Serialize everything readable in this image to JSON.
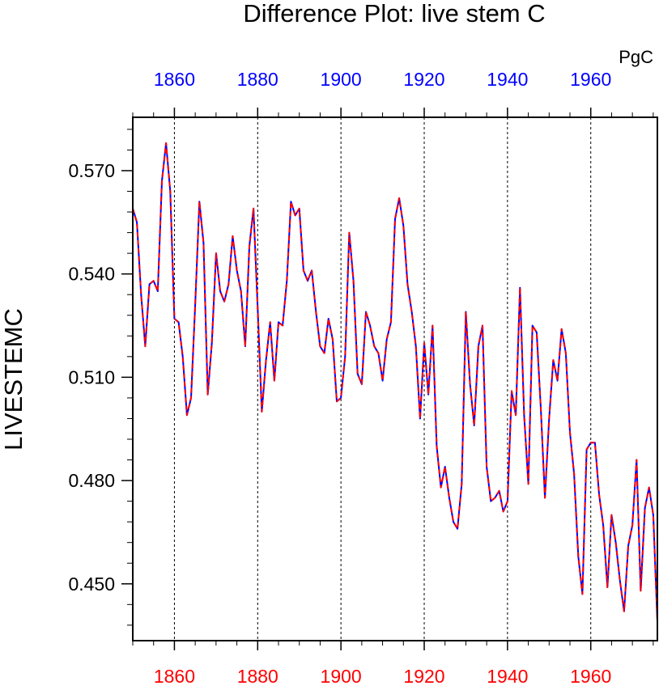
{
  "chart_data": {
    "type": "line",
    "title": "Difference Plot: live stem C",
    "units_label": "PgC",
    "ylabel": "LIVESTEMC",
    "xlabel": "",
    "xlim": [
      1850,
      1976
    ],
    "ylim": [
      0.4335,
      0.5855
    ],
    "xticks": [
      1860,
      1880,
      1900,
      1920,
      1940,
      1960
    ],
    "yticks": [
      0.45,
      0.48,
      0.51,
      0.54,
      0.57
    ],
    "ytick_labels": [
      "0.450",
      "0.480",
      "0.510",
      "0.540",
      "0.570"
    ],
    "top_tick_color": "#0000ff",
    "bottom_tick_color": "#ff0000",
    "grid": "vertical dashed lines at x ticks",
    "series": [
      {
        "color": "#0000ff",
        "style": "solid",
        "x": [
          1850,
          1851,
          1852,
          1853,
          1854,
          1855,
          1856,
          1857,
          1858,
          1859,
          1860,
          1861,
          1862,
          1863,
          1864,
          1865,
          1866,
          1867,
          1868,
          1869,
          1870,
          1871,
          1872,
          1873,
          1874,
          1875,
          1876,
          1877,
          1878,
          1879,
          1880,
          1881,
          1882,
          1883,
          1884,
          1885,
          1886,
          1887,
          1888,
          1889,
          1890,
          1891,
          1892,
          1893,
          1894,
          1895,
          1896,
          1897,
          1898,
          1899,
          1900,
          1901,
          1902,
          1903,
          1904,
          1905,
          1906,
          1907,
          1908,
          1909,
          1910,
          1911,
          1912,
          1913,
          1914,
          1915,
          1916,
          1917,
          1918,
          1919,
          1920,
          1921,
          1922,
          1923,
          1924,
          1925,
          1926,
          1927,
          1928,
          1929,
          1930,
          1931,
          1932,
          1933,
          1934,
          1935,
          1936,
          1937,
          1938,
          1939,
          1940,
          1941,
          1942,
          1943,
          1944,
          1945,
          1946,
          1947,
          1948,
          1949,
          1950,
          1951,
          1952,
          1953,
          1954,
          1955,
          1956,
          1957,
          1958,
          1959,
          1960,
          1961,
          1962,
          1963,
          1964,
          1965,
          1966,
          1967,
          1968,
          1969,
          1970,
          1971,
          1972,
          1973,
          1974,
          1975,
          1976
        ],
        "values": [
          0.559,
          0.555,
          0.534,
          0.519,
          0.537,
          0.538,
          0.535,
          0.567,
          0.578,
          0.564,
          0.527,
          0.526,
          0.516,
          0.499,
          0.504,
          0.531,
          0.561,
          0.549,
          0.505,
          0.52,
          0.546,
          0.535,
          0.532,
          0.537,
          0.551,
          0.541,
          0.535,
          0.519,
          0.548,
          0.559,
          0.53,
          0.5,
          0.515,
          0.526,
          0.509,
          0.526,
          0.525,
          0.538,
          0.561,
          0.557,
          0.559,
          0.541,
          0.538,
          0.541,
          0.529,
          0.519,
          0.517,
          0.527,
          0.521,
          0.503,
          0.504,
          0.516,
          0.552,
          0.538,
          0.511,
          0.508,
          0.529,
          0.525,
          0.519,
          0.517,
          0.509,
          0.521,
          0.526,
          0.556,
          0.562,
          0.554,
          0.537,
          0.529,
          0.519,
          0.498,
          0.52,
          0.505,
          0.525,
          0.49,
          0.478,
          0.484,
          0.475,
          0.468,
          0.466,
          0.479,
          0.529,
          0.508,
          0.496,
          0.519,
          0.525,
          0.484,
          0.474,
          0.475,
          0.477,
          0.471,
          0.474,
          0.506,
          0.499,
          0.536,
          0.499,
          0.479,
          0.525,
          0.523,
          0.501,
          0.475,
          0.498,
          0.515,
          0.509,
          0.524,
          0.517,
          0.494,
          0.482,
          0.458,
          0.447,
          0.489,
          0.491,
          0.491,
          0.476,
          0.467,
          0.449,
          0.47,
          0.462,
          0.451,
          0.442,
          0.461,
          0.467,
          0.486,
          0.448,
          0.472,
          0.478,
          0.47,
          0.439
        ]
      },
      {
        "color": "#ff0000",
        "style": "dashed",
        "x": [
          1850,
          1851,
          1852,
          1853,
          1854,
          1855,
          1856,
          1857,
          1858,
          1859,
          1860,
          1861,
          1862,
          1863,
          1864,
          1865,
          1866,
          1867,
          1868,
          1869,
          1870,
          1871,
          1872,
          1873,
          1874,
          1875,
          1876,
          1877,
          1878,
          1879,
          1880,
          1881,
          1882,
          1883,
          1884,
          1885,
          1886,
          1887,
          1888,
          1889,
          1890,
          1891,
          1892,
          1893,
          1894,
          1895,
          1896,
          1897,
          1898,
          1899,
          1900,
          1901,
          1902,
          1903,
          1904,
          1905,
          1906,
          1907,
          1908,
          1909,
          1910,
          1911,
          1912,
          1913,
          1914,
          1915,
          1916,
          1917,
          1918,
          1919,
          1920,
          1921,
          1922,
          1923,
          1924,
          1925,
          1926,
          1927,
          1928,
          1929,
          1930,
          1931,
          1932,
          1933,
          1934,
          1935,
          1936,
          1937,
          1938,
          1939,
          1940,
          1941,
          1942,
          1943,
          1944,
          1945,
          1946,
          1947,
          1948,
          1949,
          1950,
          1951,
          1952,
          1953,
          1954,
          1955,
          1956,
          1957,
          1958,
          1959,
          1960,
          1961,
          1962,
          1963,
          1964,
          1965,
          1966,
          1967,
          1968,
          1969,
          1970,
          1971,
          1972,
          1973,
          1974,
          1975,
          1976
        ],
        "values": [
          0.559,
          0.555,
          0.534,
          0.519,
          0.537,
          0.538,
          0.535,
          0.567,
          0.578,
          0.564,
          0.527,
          0.526,
          0.516,
          0.499,
          0.504,
          0.531,
          0.561,
          0.549,
          0.505,
          0.52,
          0.546,
          0.535,
          0.532,
          0.537,
          0.551,
          0.541,
          0.535,
          0.519,
          0.548,
          0.559,
          0.53,
          0.5,
          0.515,
          0.526,
          0.509,
          0.526,
          0.525,
          0.538,
          0.561,
          0.557,
          0.559,
          0.541,
          0.538,
          0.541,
          0.529,
          0.519,
          0.517,
          0.527,
          0.521,
          0.503,
          0.504,
          0.516,
          0.552,
          0.538,
          0.511,
          0.508,
          0.529,
          0.525,
          0.519,
          0.517,
          0.509,
          0.521,
          0.526,
          0.556,
          0.562,
          0.554,
          0.537,
          0.529,
          0.519,
          0.498,
          0.52,
          0.505,
          0.525,
          0.49,
          0.478,
          0.484,
          0.475,
          0.468,
          0.466,
          0.479,
          0.529,
          0.508,
          0.496,
          0.519,
          0.525,
          0.484,
          0.474,
          0.475,
          0.477,
          0.471,
          0.474,
          0.506,
          0.499,
          0.536,
          0.499,
          0.479,
          0.525,
          0.523,
          0.501,
          0.475,
          0.498,
          0.515,
          0.509,
          0.524,
          0.517,
          0.494,
          0.482,
          0.458,
          0.447,
          0.489,
          0.491,
          0.491,
          0.476,
          0.467,
          0.449,
          0.47,
          0.462,
          0.451,
          0.442,
          0.461,
          0.467,
          0.486,
          0.448,
          0.472,
          0.478,
          0.47,
          0.439
        ]
      }
    ]
  }
}
